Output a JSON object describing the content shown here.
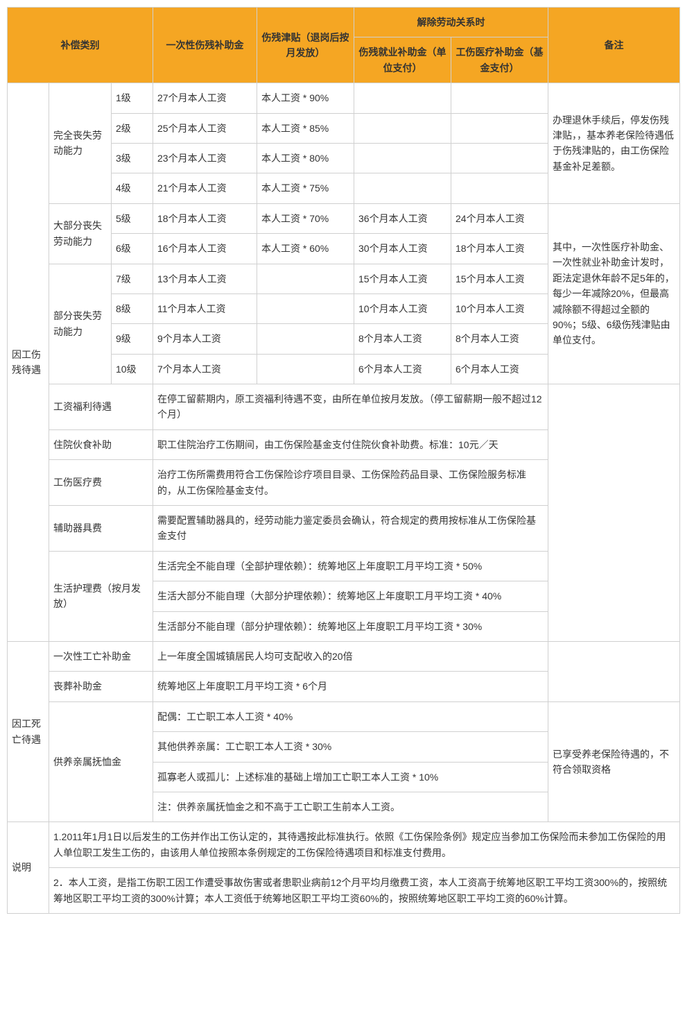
{
  "header": {
    "category": "补偿类别",
    "lump_sum": "一次性伤残补助金",
    "disability_allowance": "伤残津贴（退岗后按月发放）",
    "termination": "解除劳动关系时",
    "employment_subsidy": "伤残就业补助金（单位支付）",
    "medical_subsidy": "工伤医疗补助金（基金支付）",
    "remarks": "备注"
  },
  "cat_injury": "因工伤残待遇",
  "cat_death": "因工死亡待遇",
  "cat_desc": "说明",
  "loss_full": "完全丧失劳动能力",
  "loss_most": "大部分丧失劳动能力",
  "loss_part": "部分丧失劳动能力",
  "levels": {
    "l1": {
      "name": "1级",
      "lump": "27个月本人工资",
      "allow": "本人工资 * 90%",
      "emp": "",
      "fund": ""
    },
    "l2": {
      "name": "2级",
      "lump": "25个月本人工资",
      "allow": "本人工资 * 85%",
      "emp": "",
      "fund": ""
    },
    "l3": {
      "name": "3级",
      "lump": "23个月本人工资",
      "allow": "本人工资 * 80%",
      "emp": "",
      "fund": ""
    },
    "l4": {
      "name": "4级",
      "lump": "21个月本人工资",
      "allow": "本人工资 * 75%",
      "emp": "",
      "fund": ""
    },
    "l5": {
      "name": "5级",
      "lump": "18个月本人工资",
      "allow": "本人工资 * 70%",
      "emp": "36个月本人工资",
      "fund": "24个月本人工资"
    },
    "l6": {
      "name": "6级",
      "lump": "16个月本人工资",
      "allow": "本人工资 * 60%",
      "emp": "30个月本人工资",
      "fund": "18个月本人工资"
    },
    "l7": {
      "name": "7级",
      "lump": "13个月本人工资",
      "allow": "",
      "emp": "15个月本人工资",
      "fund": "15个月本人工资"
    },
    "l8": {
      "name": "8级",
      "lump": "11个月本人工资",
      "allow": "",
      "emp": "10个月本人工资",
      "fund": "10个月本人工资"
    },
    "l9": {
      "name": "9级",
      "lump": "9个月本人工资",
      "allow": "",
      "emp": "8个月本人工资",
      "fund": "8个月本人工资"
    },
    "l10": {
      "name": "10级",
      "lump": "7个月本人工资",
      "allow": "",
      "emp": "6个月本人工资",
      "fund": "6个月本人工资"
    }
  },
  "note_1_4": "办理退休手续后，停发伤残津贴，，基本养老保险待遇低于伤残津贴的，由工伤保险基金补足差额。",
  "note_5_10": "其中，一次性医疗补助金、一次性就业补助金计发时，距法定退休年龄不足5年的，每少一年减除20%，但最高减除额不得超过全额的90%；5级、6级伤残津贴由单位支付。",
  "welfare": {
    "label": "工资福利待遇",
    "text": "在停工留薪期内，原工资福利待遇不变，由所在单位按月发放。（停工留薪期一般不超过12个月）"
  },
  "hospital_food": {
    "label": "住院伙食补助",
    "text": "职工住院治疗工伤期间，由工伤保险基金支付住院伙食补助费。标准：10元／天"
  },
  "medical_fee": {
    "label": "工伤医疗费",
    "text": "治疗工伤所需费用符合工伤保险诊疗项目目录、工伤保险药品目录、工伤保险服务标准的，从工伤保险基金支付。"
  },
  "assist_fee": {
    "label": "辅助器具费",
    "text": "需要配置辅助器具的，经劳动能力鉴定委员会确认，符合规定的费用按标准从工伤保险基金支付"
  },
  "care_fee": {
    "label": "生活护理费（按月发放）",
    "full": "生活完全不能自理（全部护理依赖）：统筹地区上年度职工月平均工资 * 50%",
    "most": "生活大部分不能自理（大部分护理依赖）：统筹地区上年度职工月平均工资 * 40%",
    "part": "生活部分不能自理（部分护理依赖）：统筹地区上年度职工月平均工资 * 30%"
  },
  "death_lump": {
    "label": "一次性工亡补助金",
    "text": "上一年度全国城镇居民人均可支配收入的20倍"
  },
  "funeral": {
    "label": "丧葬补助金",
    "text": "统筹地区上年度职工月平均工资 * 6个月"
  },
  "dependent": {
    "label": "供养亲属抚恤金",
    "spouse": "配偶：工亡职工本人工资 * 40%",
    "other": "其他供养亲属：工亡职工本人工资 * 30%",
    "orphan": "孤寡老人或孤儿：上述标准的基础上增加工亡职工本人工资 * 10%",
    "note": "注：供养亲属抚恤金之和不高于工亡职工生前本人工资。",
    "remark": "已享受养老保险待遇的，不符合领取资格"
  },
  "explain1": "1.2011年1月1日以后发生的工伤并作出工伤认定的，其待遇按此标准执行。依照《工伤保险条例》规定应当参加工伤保险而未参加工伤保险的用人单位职工发生工伤的，由该用人单位按照本条例规定的工伤保险待遇项目和标准支付费用。",
  "explain2": "2．本人工资，是指工伤职工因工作遭受事故伤害或者患职业病前12个月平均月缴费工资，本人工资高于统筹地区职工平均工资300%的，按照统筹地区职工平均工资的300%计算；本人工资低于统筹地区职工平均工资60%的，按照统筹地区职工平均工资的60%计算。",
  "colors": {
    "header_bg": "#f5a623",
    "border": "#d0d0d0",
    "text": "#333333"
  }
}
